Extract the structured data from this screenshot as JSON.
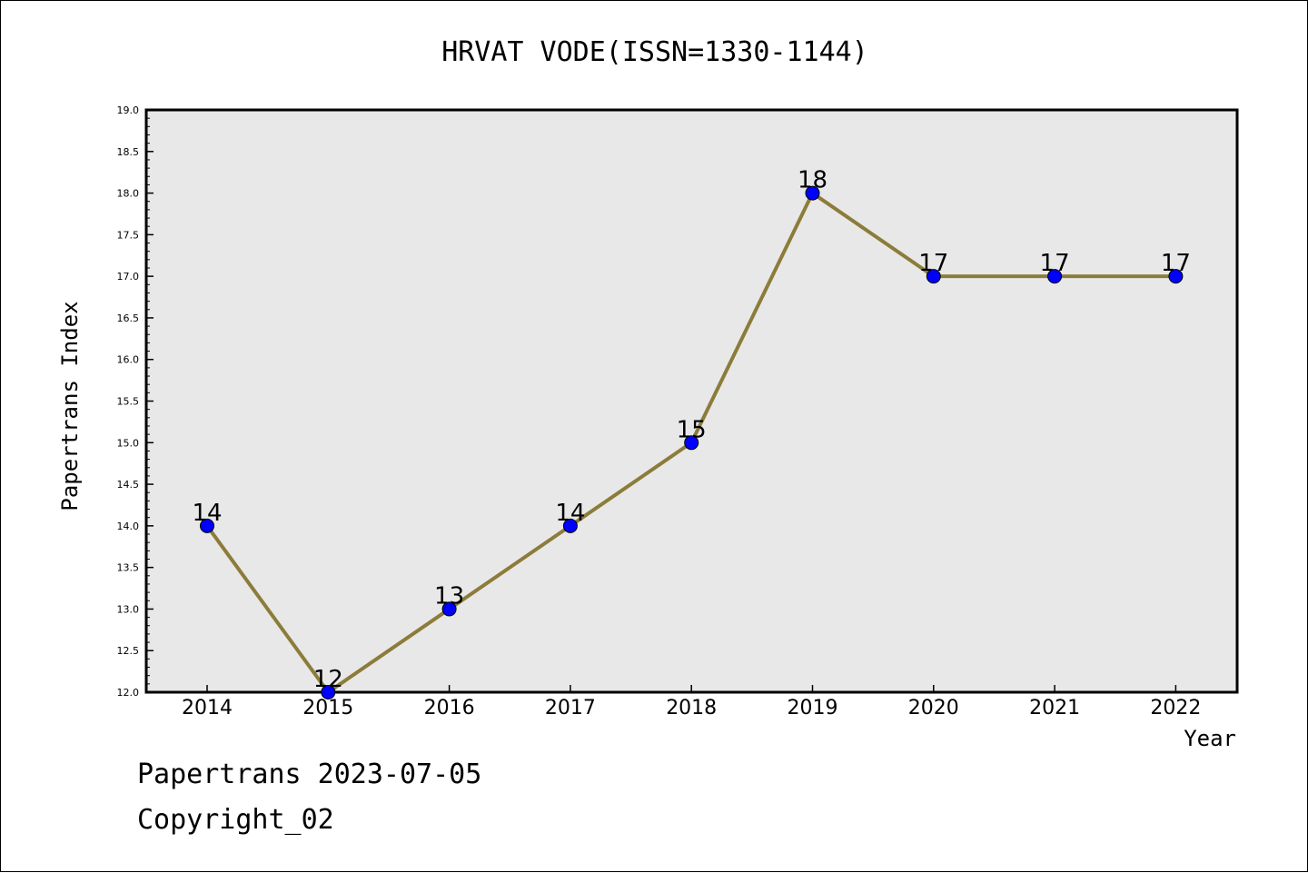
{
  "chart_data": {
    "type": "line",
    "title": "HRVAT VODE(ISSN=1330-1144)",
    "xlabel": "Year",
    "ylabel": "Papertrans Index",
    "x": [
      "2014",
      "2015",
      "2016",
      "2017",
      "2018",
      "2019",
      "2020",
      "2021",
      "2022"
    ],
    "values": [
      14,
      12,
      13,
      14,
      15,
      18,
      17,
      17,
      17
    ],
    "data_labels": [
      "14",
      "12",
      "13",
      "14",
      "15",
      "18",
      "17",
      "17",
      "17"
    ],
    "ylim": [
      12.0,
      19.0
    ],
    "yticks": [
      "12.0",
      "12.5",
      "13.0",
      "13.5",
      "14.0",
      "14.5",
      "15.0",
      "15.5",
      "16.0",
      "16.5",
      "17.0",
      "17.5",
      "18.0",
      "18.5",
      "19.0"
    ],
    "grid": false,
    "legend": "none",
    "colors": {
      "line": "#8c7c3a",
      "marker": "#0000ff",
      "plot_background": "#e8e8e8"
    }
  },
  "footer": {
    "line1": "Papertrans 2023-07-05",
    "line2": "Copyright_02"
  }
}
